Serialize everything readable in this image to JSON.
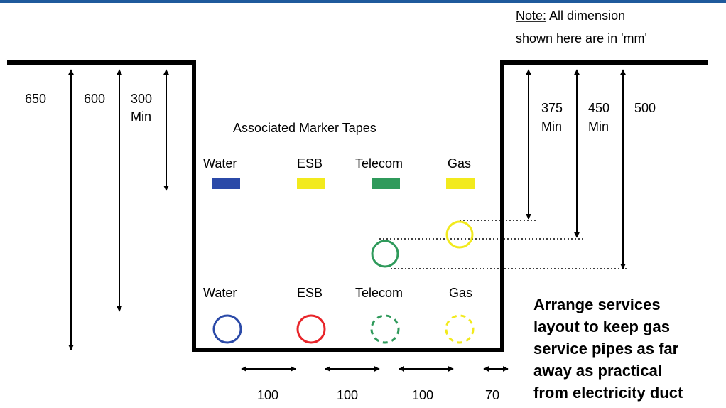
{
  "top_bar_color": "#1f5a9c",
  "note": {
    "prefix": "Note:",
    "line1_rest": " All dimension",
    "line2": "shown here are in 'mm'"
  },
  "left_dims": [
    {
      "label": "650"
    },
    {
      "label": "600"
    },
    {
      "label_line1": "300",
      "label_line2": "Min"
    }
  ],
  "right_dims": [
    {
      "label_line1": "375",
      "label_line2": "Min"
    },
    {
      "label_line1": "450",
      "label_line2": "Min"
    },
    {
      "label": "500"
    }
  ],
  "marker_tapes": {
    "title": "Associated Marker Tapes",
    "items": [
      {
        "label": "Water",
        "color": "#2b4aa8"
      },
      {
        "label": "ESB",
        "color": "#f2ea1d"
      },
      {
        "label": "Telecom",
        "color": "#2f9a5b"
      },
      {
        "label": "Gas",
        "color": "#f2ea1d"
      }
    ]
  },
  "services": {
    "items": [
      {
        "label": "Water",
        "color": "#2b4aa8",
        "style": "solid"
      },
      {
        "label": "ESB",
        "color": "#e8252a",
        "style": "solid"
      },
      {
        "label": "Telecom",
        "color": "#2f9a5b",
        "style": "dashed"
      },
      {
        "label": "Gas",
        "color": "#f2ea1d",
        "style": "dashed"
      }
    ]
  },
  "spacings": [
    "100",
    "100",
    "100",
    "70"
  ],
  "advice": {
    "lines": [
      "Arrange services",
      "layout to keep gas",
      "service pipes as far",
      "away as practical",
      "from electricity duct"
    ]
  }
}
